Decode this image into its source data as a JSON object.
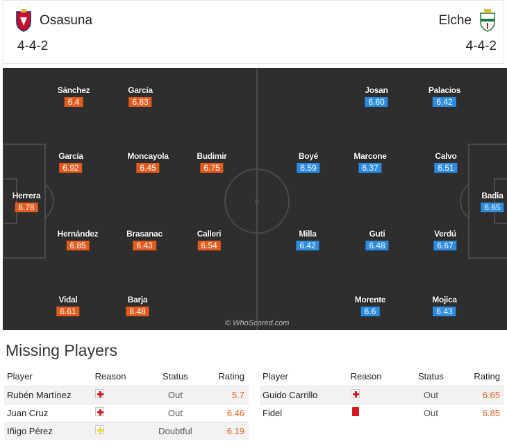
{
  "header": {
    "home": {
      "name": "Osasuna",
      "formation": "4-4-2"
    },
    "away": {
      "name": "Elche",
      "formation": "4-4-2"
    }
  },
  "colors": {
    "home_rating": "#e35c1e",
    "away_rating": "#2c8ce0",
    "pitch": "#2e2e2e"
  },
  "pitch": {
    "watermark": "© WhoScored.com",
    "home_players": [
      {
        "name": "Sánchez",
        "rating": "6.4"
      },
      {
        "name": "García",
        "rating": "6.83"
      },
      {
        "name": "García",
        "rating": "6.92"
      },
      {
        "name": "Moncayola",
        "rating": "6.45"
      },
      {
        "name": "Budimir",
        "rating": "6.75"
      },
      {
        "name": "Herrera",
        "rating": "6.78"
      },
      {
        "name": "Hernández",
        "rating": "6.85"
      },
      {
        "name": "Brasanac",
        "rating": "6.43"
      },
      {
        "name": "Calleri",
        "rating": "6.54"
      },
      {
        "name": "Vidal",
        "rating": "6.61"
      },
      {
        "name": "Barja",
        "rating": "6.48"
      }
    ],
    "away_players": [
      {
        "name": "Josan",
        "rating": "6.60"
      },
      {
        "name": "Palacios",
        "rating": "6.42"
      },
      {
        "name": "Boyé",
        "rating": "6.59"
      },
      {
        "name": "Marcone",
        "rating": "6.37"
      },
      {
        "name": "Calvo",
        "rating": "6.51"
      },
      {
        "name": "Badia",
        "rating": "6.65"
      },
      {
        "name": "Milla",
        "rating": "6.42"
      },
      {
        "name": "Guti",
        "rating": "6.48"
      },
      {
        "name": "Verdú",
        "rating": "6.67"
      },
      {
        "name": "Morente",
        "rating": "6.6"
      },
      {
        "name": "Mojica",
        "rating": "6.43"
      }
    ]
  },
  "missing": {
    "title": "Missing Players",
    "headers": {
      "player": "Player",
      "reason": "Reason",
      "status": "Status",
      "rating": "Rating"
    },
    "home": [
      {
        "player": "Rubén Martínez",
        "reason": "injury-icon",
        "status": "Out",
        "rating": "5.7"
      },
      {
        "player": "Juan Cruz",
        "reason": "injury-icon",
        "status": "Out",
        "rating": "6.46"
      },
      {
        "player": "Iñigo Pérez",
        "reason": "doubtful-injury-icon",
        "status": "Doubtful",
        "rating": "6.19"
      }
    ],
    "away": [
      {
        "player": "Guido Carrillo",
        "reason": "injury-icon",
        "status": "Out",
        "rating": "6.65"
      },
      {
        "player": "Fidel",
        "reason": "red-card-icon",
        "status": "Out",
        "rating": "6.85"
      }
    ]
  }
}
